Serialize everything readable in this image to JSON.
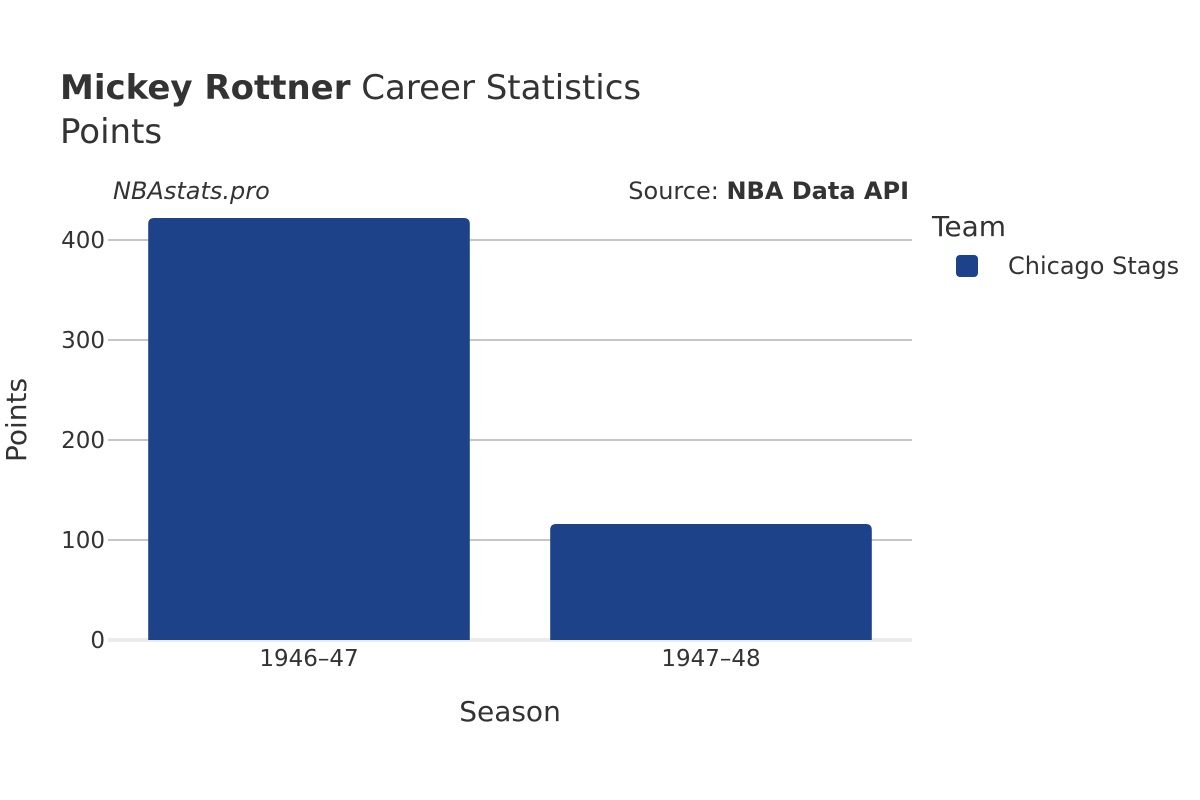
{
  "header": {
    "player_name": "Mickey Rottner",
    "title_suffix": "Career Statistics",
    "subtitle": "Points"
  },
  "watermark": "NBAstats.pro",
  "source": {
    "prefix": "Source: ",
    "name": "NBA Data API"
  },
  "legend": {
    "title": "Team",
    "items": [
      {
        "label": "Chicago Stags",
        "color": "#1d428a"
      }
    ]
  },
  "chart_data": {
    "type": "bar",
    "categories": [
      "1946–47",
      "1947–48"
    ],
    "series": [
      {
        "name": "Chicago Stags",
        "values": [
          422,
          116
        ],
        "color": "#1d428a"
      }
    ],
    "xlabel": "Season",
    "ylabel": "Points",
    "ylim": [
      0,
      430
    ],
    "yticks": [
      0,
      100,
      200,
      300,
      400
    ],
    "grid": true,
    "legend_position": "right"
  }
}
